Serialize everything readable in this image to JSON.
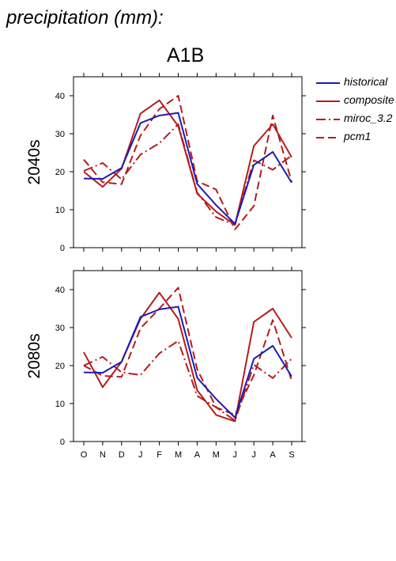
{
  "title": "precipitation (mm):",
  "scenario": "A1B",
  "legend": [
    {
      "name": "historical",
      "color": "#1c1cb4",
      "dash": "solid"
    },
    {
      "name": "composite",
      "color": "#b41c1c",
      "dash": "solid"
    },
    {
      "name": "miroc_3.2",
      "color": "#b41c1c",
      "dash": "dashdot"
    },
    {
      "name": "pcm1",
      "color": "#b41c1c",
      "dash": "dashed"
    }
  ],
  "chart_data": [
    {
      "type": "line",
      "panel_label": "2040s",
      "categories": [
        "O",
        "N",
        "D",
        "J",
        "F",
        "M",
        "A",
        "M",
        "J",
        "J",
        "A",
        "S"
      ],
      "ylim": [
        0,
        45
      ],
      "yticks": [
        0,
        10,
        20,
        30,
        40
      ],
      "legend_position": "right",
      "series": [
        {
          "name": "historical",
          "values": [
            18.2,
            18.1,
            21.0,
            32.8,
            34.8,
            35.5,
            16.8,
            11.2,
            6.3,
            21.8,
            25.2,
            17.1
          ]
        },
        {
          "name": "composite",
          "values": [
            20.0,
            16.0,
            20.8,
            35.3,
            38.8,
            32.0,
            14.2,
            9.5,
            6.0,
            26.8,
            32.5,
            23.8
          ]
        },
        {
          "name": "miroc_3.2",
          "values": [
            20.2,
            22.3,
            18.0,
            24.5,
            27.5,
            32.5,
            14.5,
            8.0,
            6.0,
            23.0,
            20.5,
            24.3
          ]
        },
        {
          "name": "pcm1",
          "values": [
            23.2,
            17.2,
            16.7,
            29.5,
            36.5,
            40.0,
            17.5,
            15.3,
            4.8,
            11.0,
            34.8,
            17.3
          ]
        }
      ]
    },
    {
      "type": "line",
      "panel_label": "2080s",
      "categories": [
        "O",
        "N",
        "D",
        "J",
        "F",
        "M",
        "A",
        "M",
        "J",
        "J",
        "A",
        "S"
      ],
      "ylim": [
        0,
        45
      ],
      "yticks": [
        0,
        10,
        20,
        30,
        40
      ],
      "legend_position": "right",
      "series": [
        {
          "name": "historical",
          "values": [
            18.2,
            18.1,
            21.0,
            32.8,
            34.8,
            35.5,
            16.8,
            11.2,
            6.3,
            21.8,
            25.2,
            17.1
          ]
        },
        {
          "name": "composite",
          "values": [
            23.5,
            14.3,
            21.0,
            32.3,
            39.2,
            32.3,
            13.5,
            7.0,
            5.3,
            31.5,
            35.0,
            27.3
          ]
        },
        {
          "name": "miroc_3.2",
          "values": [
            20.0,
            22.3,
            18.2,
            17.5,
            23.2,
            26.5,
            12.0,
            9.0,
            5.5,
            20.2,
            16.7,
            21.8
          ]
        },
        {
          "name": "pcm1",
          "values": [
            20.0,
            17.3,
            17.0,
            29.8,
            35.0,
            40.5,
            19.0,
            9.0,
            7.0,
            17.5,
            32.0,
            16.0
          ]
        }
      ]
    }
  ]
}
